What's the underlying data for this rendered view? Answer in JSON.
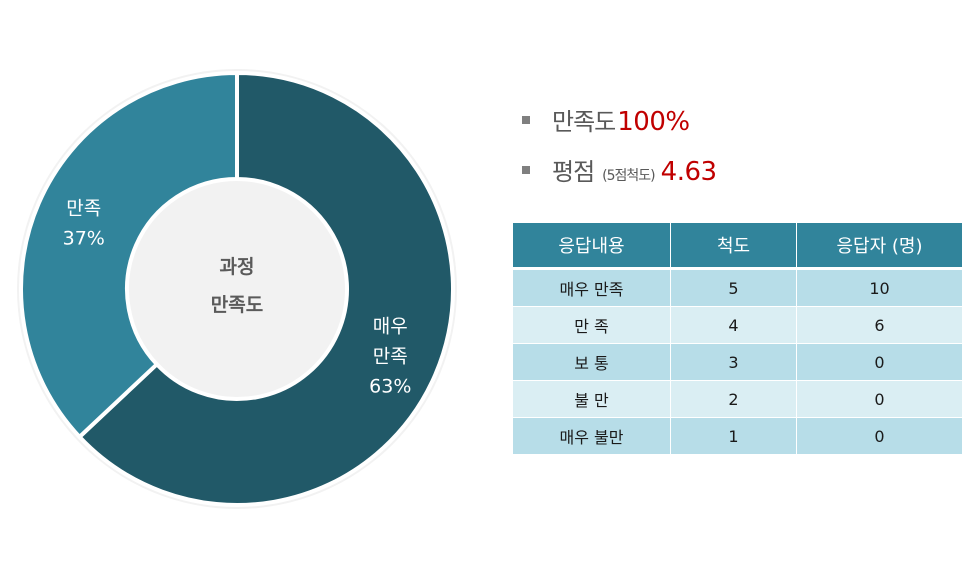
{
  "chart_data": {
    "type": "pie",
    "center_label": [
      "과정",
      "만족도"
    ],
    "slices": [
      {
        "label": [
          "매우",
          "만족",
          "63%"
        ],
        "value": 63,
        "color": "#215968"
      },
      {
        "label": [
          "만족",
          "37%"
        ],
        "value": 37,
        "color": "#31849b"
      }
    ]
  },
  "stats": {
    "satisfaction_label": "만족도",
    "satisfaction_value": "100%",
    "score_label": "평점",
    "score_sub": "(5점척도)",
    "score_value": "4.63"
  },
  "table": {
    "headers": [
      "응답내용",
      "척도",
      "응답자 (명)"
    ],
    "rows": [
      [
        "매우 만족",
        "5",
        "10"
      ],
      [
        "만 족",
        "4",
        "6"
      ],
      [
        "보 통",
        "3",
        "0"
      ],
      [
        "불 만",
        "2",
        "0"
      ],
      [
        "매우 불만",
        "1",
        "0"
      ]
    ]
  },
  "colors": {
    "header_bg": "#31849b",
    "row_odd": "#b7dde8",
    "row_even": "#daeef3",
    "value_red": "#c00000"
  }
}
